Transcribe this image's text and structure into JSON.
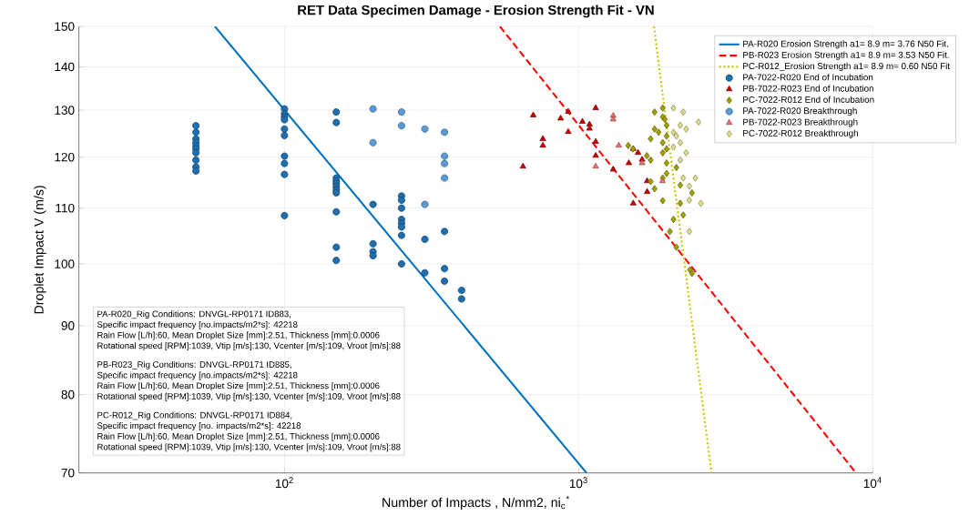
{
  "chart_data": {
    "type": "scatter",
    "title": "RET Data Specimen Damage - Erosion Strength Fit - VN",
    "xlabel": "Number of Impacts , N/mm2, ni$_{c}$$^{*}$",
    "ylabel": "Droplet Impact V (m/s)",
    "log": "xy",
    "grid": true,
    "legend": "top right",
    "xlim": [
      20,
      10000
    ],
    "ylim": [
      70,
      150
    ],
    "xticks": [
      {
        "value": 100,
        "label": "10$^{2}$"
      },
      {
        "value": 1000,
        "label": "10$^{3}$"
      },
      {
        "value": 10000,
        "label": "10$^{4}$"
      }
    ],
    "yticks": [
      70,
      80,
      90,
      100,
      110,
      120,
      130,
      140,
      150
    ],
    "series": [
      {
        "type": "line",
        "name": "PA-R020 Erosion Strength a1= 8.9 m= 3.76 N50 Fit.",
        "color": "#0072bd",
        "line_style": "solid",
        "x": [
          58,
          1064
        ],
        "values": [
          150,
          70
        ]
      },
      {
        "type": "line",
        "name": "PB-R023 Erosion Strength a1= 8.9 m= 3.53 N50 Fit.",
        "color": "#ff0000",
        "line_style": "dashed",
        "x": [
          540,
          8770
        ],
        "values": [
          150,
          70
        ]
      },
      {
        "type": "line",
        "name": "PC-R012_Erosion Strength a1= 8.9 m= 0.60 N50 Fit",
        "color": "#c8c800",
        "line_style": "dotted",
        "x": [
          1803,
          2830
        ],
        "values": [
          150,
          70
        ]
      },
      {
        "type": "scatter",
        "name": "PA-7022-R020 End of Incubation",
        "color": "#1f6fb0",
        "marker": "circle",
        "x": [
          50,
          50,
          50,
          50,
          50,
          50,
          50,
          50,
          50,
          50,
          100,
          100,
          100,
          100,
          100,
          100,
          100,
          100,
          100,
          100,
          150,
          150,
          150,
          150,
          150,
          150,
          150,
          150,
          150,
          150,
          150,
          200,
          200,
          200,
          200,
          250,
          250,
          250,
          250,
          250,
          250,
          250,
          250,
          300,
          300,
          350,
          350,
          350,
          400,
          400
        ],
        "values": [
          126.6,
          125.2,
          123.8,
          123.0,
          122.3,
          121.7,
          120.9,
          119.4,
          118.0,
          117.2,
          130.3,
          129.2,
          128.5,
          127.9,
          125.9,
          124.5,
          120.2,
          118.7,
          116.5,
          108.6,
          129.6,
          127.3,
          115.8,
          115.2,
          114.7,
          114.1,
          113.5,
          112.9,
          109.3,
          102.9,
          100.6,
          110.7,
          103.5,
          102.1,
          101.4,
          112.3,
          111.5,
          110.0,
          107.9,
          107.2,
          106.5,
          105.0,
          100.0,
          104.3,
          98.5,
          105.7,
          99.2,
          97.1,
          95.6,
          94.2
        ]
      },
      {
        "type": "scatter",
        "name": "PB-7022-R023 End of Incubation",
        "color": "#cc0000",
        "marker": "triangle",
        "x": [
          701,
          647,
          756,
          756,
          869,
          922,
          922,
          1030,
          1089,
          1089,
          1143,
          1143,
          1143,
          1311,
          1482,
          1534,
          1592,
          1644,
          1710,
          1710,
          1534
        ],
        "values": [
          128.9,
          118.1,
          123.8,
          122.4,
          128.2,
          129.7,
          125.3,
          127.5,
          126.9,
          126.0,
          130.5,
          123.2,
          120.3,
          117.5,
          118.8,
          121.7,
          120.9,
          119.5,
          115.2,
          113.1,
          110.9
        ]
      },
      {
        "type": "scatter",
        "name": "PC-7022-R012 End of Incubation",
        "color": "#a0a000",
        "marker": "diamond",
        "x": [
          1812,
          1932,
          1932,
          1964,
          1991,
          1812,
          1871,
          1758,
          1991,
          1932,
          1991,
          1932,
          1991,
          1991,
          1932,
          1475,
          1530,
          1706,
          1758,
          1758,
          1812,
          1932,
          2149,
          2216,
          2429,
          2216,
          2267,
          2101,
          2043,
          2149,
          2391,
          2429
        ],
        "values": [
          129.6,
          130.5,
          128.5,
          128.0,
          126.7,
          125.9,
          125.2,
          123.8,
          124.4,
          123.0,
          121.7,
          120.9,
          118.8,
          116.7,
          115.8,
          122.4,
          121.7,
          120.3,
          119.4,
          115.1,
          113.7,
          111.4,
          117.9,
          114.4,
          112.9,
          110.9,
          108.7,
          107.9,
          105.7,
          102.9,
          99.0,
          98.4
        ]
      },
      {
        "type": "scatter",
        "name": "PA-7022-R020 Breakthrough",
        "color": "#5b9bd5",
        "marker": "circle",
        "x": [
          200,
          200,
          250,
          250,
          300,
          300,
          350,
          350,
          350,
          350
        ],
        "values": [
          130.3,
          123.0,
          129.6,
          126.6,
          125.9,
          110.7,
          125.2,
          120.2,
          118.7,
          115.8
        ]
      },
      {
        "type": "scatter",
        "name": "PB-7022-R023 Breakthrough",
        "color": "#f07070",
        "marker": "triangle",
        "x": [
          1311,
          1311,
          1369,
          1143,
          1644,
          1928
        ],
        "values": [
          128.8,
          128.0,
          122.4,
          118.1,
          118.8,
          115.2
        ]
      },
      {
        "type": "scatter",
        "name": "PC-7022-R012 Breakthrough",
        "color": "#dcdc8c",
        "marker": "diamond",
        "x": [
          2101,
          2267,
          2216,
          2320,
          2101,
          2149,
          2216,
          2101,
          2320,
          2216,
          2267,
          2493,
          2379,
          2605,
          2379,
          2379,
          2556
        ],
        "values": [
          130.5,
          129.6,
          126.7,
          125.9,
          125.2,
          124.4,
          123.0,
          122.1,
          120.9,
          119.4,
          115.8,
          115.8,
          114.2,
          110.9,
          111.5,
          105.7,
          127.4
        ]
      }
    ],
    "annotations": [
      "PA-R020_Rig Conditions: DNVGL-RP0171 ID883,",
      "Specific impact frequency [no.impacts/m2*s]: 42218",
      "Rain Flow [L/h]:60, Mean Droplet Size [mm]:2.51, Thickness [mm]:0.0006",
      "Rotational speed [RPM]:1039, Vtip [m/s]:130, Vcenter [m/s]:109, Vroot [m/s]:88",
      "PB-R023_Rig Conditions: DNVGL-RP0171 ID885,",
      "Specific impact frequency [no.impacts/m2*s]: 42218",
      "Rain Flow [L/h]:60, Mean Droplet Size [mm]:2.51, Thickness [mm]:0.0006",
      "Rotational speed [RPM]:1039, Vtip [m/s]:130, Vcenter [m/s]:109, Vroot [m/s]:88",
      "PC-R012_Rig Conditions: DNVGL-RP0171 ID884,",
      "Specific impact frequency [no. impacts/m2*s]: 42218",
      "Rain Flow [L/h]:60, Mean Droplet Size [mm]:2.51, Thickness [mm]:0.0006",
      "Rotational speed [RPM]:1039, Vtip [m/s]:130, Vcenter [m/s]:109, Vroot [m/s]:88"
    ]
  }
}
